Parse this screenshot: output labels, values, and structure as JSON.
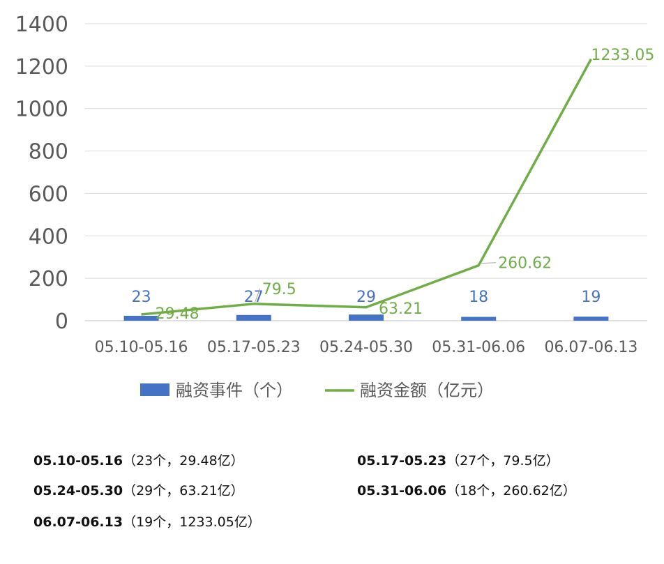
{
  "chart_data": {
    "type": "bar",
    "categories": [
      "05.10-05.16",
      "05.17-05.23",
      "05.24-05.30",
      "05.31-06.06",
      "06.07-06.13"
    ],
    "series": [
      {
        "name": "融资事件（个）",
        "type": "bar",
        "values": [
          23,
          27,
          29,
          18,
          19
        ],
        "labels": [
          "23",
          "27",
          "29",
          "18",
          "19"
        ],
        "color": "#4472C4"
      },
      {
        "name": "融资金额（亿元）",
        "type": "line",
        "values": [
          29.48,
          79.5,
          63.21,
          260.62,
          1233.05
        ],
        "labels": [
          "29.48",
          "79.5",
          "63.21",
          "260.62",
          "1233.05"
        ],
        "color": "#70AD47"
      }
    ],
    "ylim": [
      0,
      1400
    ],
    "yticks": [
      "0",
      "200",
      "400",
      "600",
      "800",
      "1000",
      "1200",
      "1400"
    ],
    "grid": true,
    "legend": "bottom"
  },
  "notes": [
    {
      "period": "05.10-05.16",
      "detail": "（23个，29.48亿）"
    },
    {
      "period": "05.17-05.23",
      "detail": "（27个，79.5亿）"
    },
    {
      "period": "05.24-05.30",
      "detail": "（29个，63.21亿）"
    },
    {
      "period": "05.31-06.06",
      "detail": "（18个，260.62亿）"
    },
    {
      "period": "06.07-06.13",
      "detail": "（19个，1233.05亿）"
    }
  ]
}
